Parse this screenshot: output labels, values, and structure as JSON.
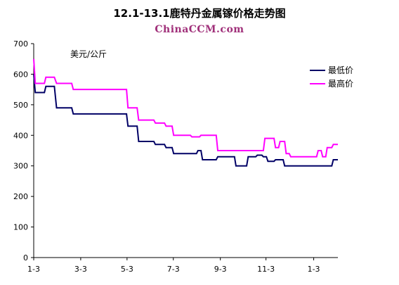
{
  "title": "12.1-13.1鹿特丹金属镓价格走势图",
  "watermark": "ChinaCCM.com",
  "chart_data": {
    "type": "line",
    "unit_label": "美元/公斤",
    "ylim": [
      0,
      700
    ],
    "yticks": [
      0,
      100,
      200,
      300,
      400,
      500,
      600,
      700
    ],
    "xlim": [
      0,
      1
    ],
    "xticks": [
      {
        "label": "1-3",
        "pos": 0.0
      },
      {
        "label": "3-3",
        "pos": 0.1545
      },
      {
        "label": "5-3",
        "pos": 0.3068
      },
      {
        "label": "7-3",
        "pos": 0.459
      },
      {
        "label": "9-3",
        "pos": 0.6136
      },
      {
        "label": "11-3",
        "pos": 0.7636
      },
      {
        "label": "1-3",
        "pos": 0.9205
      }
    ],
    "legend_position": "right",
    "series": [
      {
        "name": "最低价",
        "color": "#000066",
        "points": [
          [
            0.0,
            600
          ],
          [
            0.005,
            540
          ],
          [
            0.035,
            540
          ],
          [
            0.04,
            560
          ],
          [
            0.068,
            560
          ],
          [
            0.075,
            490
          ],
          [
            0.125,
            490
          ],
          [
            0.13,
            470
          ],
          [
            0.305,
            470
          ],
          [
            0.31,
            430
          ],
          [
            0.34,
            430
          ],
          [
            0.345,
            380
          ],
          [
            0.395,
            380
          ],
          [
            0.4,
            370
          ],
          [
            0.43,
            370
          ],
          [
            0.435,
            360
          ],
          [
            0.455,
            360
          ],
          [
            0.46,
            340
          ],
          [
            0.535,
            340
          ],
          [
            0.54,
            350
          ],
          [
            0.55,
            350
          ],
          [
            0.555,
            320
          ],
          [
            0.6,
            320
          ],
          [
            0.605,
            330
          ],
          [
            0.66,
            330
          ],
          [
            0.665,
            300
          ],
          [
            0.7,
            300
          ],
          [
            0.705,
            330
          ],
          [
            0.73,
            330
          ],
          [
            0.735,
            335
          ],
          [
            0.75,
            335
          ],
          [
            0.755,
            330
          ],
          [
            0.765,
            330
          ],
          [
            0.77,
            315
          ],
          [
            0.79,
            315
          ],
          [
            0.795,
            320
          ],
          [
            0.82,
            320
          ],
          [
            0.825,
            300
          ],
          [
            0.98,
            300
          ],
          [
            0.985,
            320
          ],
          [
            1.0,
            320
          ]
        ]
      },
      {
        "name": "最高价",
        "color": "#ff00ff",
        "points": [
          [
            0.0,
            650
          ],
          [
            0.005,
            570
          ],
          [
            0.035,
            570
          ],
          [
            0.04,
            590
          ],
          [
            0.068,
            590
          ],
          [
            0.075,
            570
          ],
          [
            0.125,
            570
          ],
          [
            0.13,
            550
          ],
          [
            0.305,
            550
          ],
          [
            0.31,
            490
          ],
          [
            0.34,
            490
          ],
          [
            0.345,
            450
          ],
          [
            0.395,
            450
          ],
          [
            0.4,
            440
          ],
          [
            0.43,
            440
          ],
          [
            0.435,
            430
          ],
          [
            0.455,
            430
          ],
          [
            0.46,
            400
          ],
          [
            0.515,
            400
          ],
          [
            0.52,
            395
          ],
          [
            0.545,
            395
          ],
          [
            0.55,
            400
          ],
          [
            0.6,
            400
          ],
          [
            0.605,
            350
          ],
          [
            0.755,
            350
          ],
          [
            0.76,
            390
          ],
          [
            0.79,
            390
          ],
          [
            0.795,
            360
          ],
          [
            0.805,
            360
          ],
          [
            0.81,
            380
          ],
          [
            0.825,
            380
          ],
          [
            0.83,
            340
          ],
          [
            0.84,
            340
          ],
          [
            0.845,
            330
          ],
          [
            0.93,
            330
          ],
          [
            0.935,
            350
          ],
          [
            0.945,
            350
          ],
          [
            0.95,
            330
          ],
          [
            0.96,
            330
          ],
          [
            0.965,
            360
          ],
          [
            0.98,
            360
          ],
          [
            0.985,
            370
          ],
          [
            1.0,
            370
          ]
        ]
      }
    ]
  }
}
